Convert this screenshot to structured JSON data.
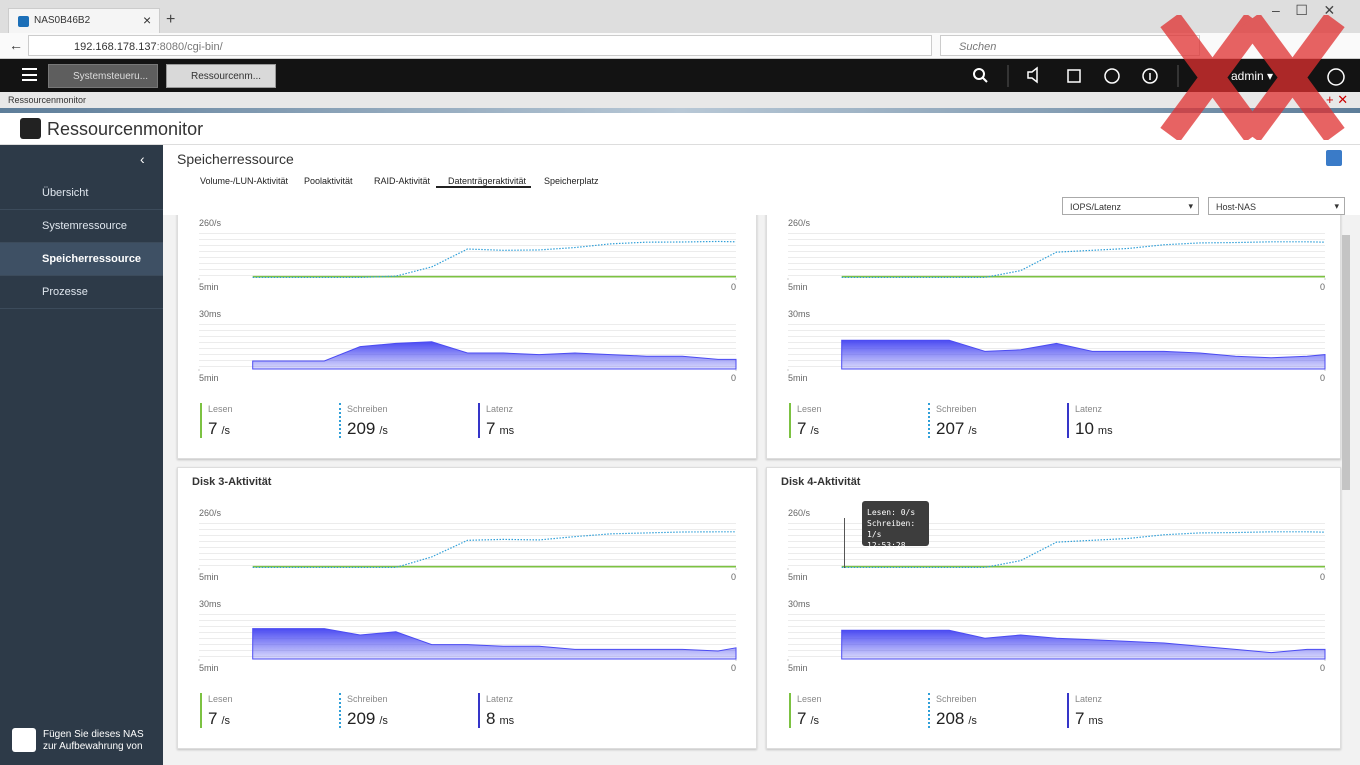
{
  "browser": {
    "tab_title": "NAS0B46B2",
    "url_host": "192.168.178.137",
    "url_rest": ":8080/cgi-bin/",
    "search_placeholder": "Suchen"
  },
  "topbar": {
    "tabs": [
      "Systemsteueru...",
      "Ressourcenm..."
    ],
    "user": "admin"
  },
  "window_title": "Ressourcenmonitor",
  "app": {
    "title": "Ressourcenmonitor",
    "sidebar": [
      "Übersicht",
      "Systemressource",
      "Speicherressource",
      "Prozesse"
    ],
    "footer": "Fügen Sie dieses NAS zur Aufbewahrung von"
  },
  "section": {
    "title": "Speicherressource",
    "tabs": [
      "Volume-/LUN-Aktivität",
      "Poolaktivität",
      "RAID-Aktivität",
      "Datenträgeraktivität",
      "Speicherplatz"
    ],
    "dropdowns": [
      "IOPS/Latenz",
      "Host-NAS"
    ]
  },
  "panels": [
    {
      "iops": {
        "type": "line",
        "xlim": [
          300,
          0
        ],
        "xticks": [
          {
            "value": 300,
            "label": "5min"
          },
          0
        ],
        "ylim": [
          0,
          260
        ],
        "yticks": [
          {
            "value": 260,
            "label": "260/s"
          }
        ],
        "x": [
          270,
          250,
          230,
          210,
          190,
          170,
          150,
          130,
          110,
          90,
          70,
          50,
          30,
          10,
          0
        ],
        "series": [
          {
            "color": "#7cc242",
            "values": [
              7,
              7,
              7,
              7,
              7,
              7,
              7,
              7,
              7,
              7,
              7,
              7,
              7,
              7,
              7
            ]
          },
          {
            "color": "#2f9fd8",
            "dashed": true,
            "values": [
              3,
              3,
              3,
              3,
              10,
              60,
              157,
              150,
              152,
              165,
              185,
              194,
              195,
              198,
              196
            ]
          }
        ]
      },
      "latency": {
        "type": "area",
        "xlim": [
          300,
          0
        ],
        "xticks": [
          {
            "value": 300,
            "label": "5min"
          },
          0
        ],
        "ylim": [
          0,
          30
        ],
        "yticks": [
          {
            "value": 30,
            "label": "30ms"
          }
        ],
        "x": [
          270,
          250,
          230,
          210,
          190,
          170,
          150,
          130,
          110,
          90,
          70,
          50,
          30,
          10,
          0
        ],
        "color": "#4b4bf2",
        "values": [
          5,
          5,
          5,
          14,
          16,
          17,
          10,
          10,
          9,
          10,
          9,
          8,
          8,
          6,
          6
        ]
      },
      "stats": [
        {
          "label": "Lesen",
          "value": 7,
          "unit": "/s",
          "color": "#7cc242"
        },
        {
          "label": "Schreiben",
          "value": 209,
          "unit": "/s",
          "color": "#2f9fd8"
        },
        {
          "label": "Latenz",
          "value": 7,
          "unit": "ms",
          "color": "#3535c8"
        }
      ]
    },
    {
      "iops": {
        "type": "line",
        "xlim": [
          300,
          0
        ],
        "xticks": [
          {
            "value": 300,
            "label": "5min"
          },
          0
        ],
        "ylim": [
          0,
          260
        ],
        "yticks": [
          {
            "value": 260,
            "label": "260/s"
          }
        ],
        "x": [
          270,
          250,
          230,
          210,
          190,
          170,
          150,
          130,
          110,
          90,
          70,
          50,
          30,
          10,
          0
        ],
        "series": [
          {
            "color": "#7cc242",
            "values": [
              7,
              7,
              7,
              7,
              7,
              7,
              7,
              7,
              7,
              7,
              7,
              7,
              7,
              7,
              7
            ]
          },
          {
            "color": "#2f9fd8",
            "dashed": true,
            "values": [
              3,
              3,
              3,
              3,
              3,
              40,
              140,
              150,
              160,
              180,
              190,
              192,
              196,
              196,
              194
            ]
          }
        ]
      },
      "latency": {
        "type": "area",
        "xlim": [
          300,
          0
        ],
        "xticks": [
          {
            "value": 300,
            "label": "5min"
          },
          0
        ],
        "ylim": [
          0,
          30
        ],
        "yticks": [
          {
            "value": 30,
            "label": "30ms"
          }
        ],
        "x": [
          270,
          250,
          230,
          210,
          190,
          170,
          150,
          130,
          110,
          90,
          70,
          50,
          30,
          10,
          0
        ],
        "color": "#4b4bf2",
        "values": [
          18,
          18,
          18,
          18,
          11,
          12,
          16,
          11,
          11,
          11,
          10,
          8,
          7,
          8,
          9
        ]
      },
      "stats": [
        {
          "label": "Lesen",
          "value": 7,
          "unit": "/s",
          "color": "#7cc242"
        },
        {
          "label": "Schreiben",
          "value": 207,
          "unit": "/s",
          "color": "#2f9fd8"
        },
        {
          "label": "Latenz",
          "value": 10,
          "unit": "ms",
          "color": "#3535c8"
        }
      ]
    },
    {
      "title": "Disk 3-Aktivität",
      "iops": {
        "type": "line",
        "xlim": [
          300,
          0
        ],
        "xticks": [
          {
            "value": 300,
            "label": "5min"
          },
          0
        ],
        "ylim": [
          0,
          260
        ],
        "yticks": [
          {
            "value": 260,
            "label": "260/s"
          }
        ],
        "x": [
          270,
          250,
          230,
          210,
          190,
          170,
          150,
          130,
          110,
          90,
          70,
          50,
          30,
          10,
          0
        ],
        "series": [
          {
            "color": "#7cc242",
            "values": [
              7,
              7,
              7,
              7,
              7,
              7,
              7,
              7,
              7,
              7,
              7,
              7,
              7,
              7,
              7
            ]
          },
          {
            "color": "#2f9fd8",
            "dashed": true,
            "values": [
              3,
              3,
              3,
              3,
              3,
              60,
              150,
              155,
              152,
              170,
              185,
              190,
              195,
              196,
              196
            ]
          }
        ]
      },
      "latency": {
        "type": "area",
        "xlim": [
          300,
          0
        ],
        "xticks": [
          {
            "value": 300,
            "label": "5min"
          },
          0
        ],
        "ylim": [
          0,
          30
        ],
        "yticks": [
          {
            "value": 30,
            "label": "30ms"
          }
        ],
        "x": [
          270,
          250,
          230,
          210,
          190,
          170,
          150,
          130,
          110,
          90,
          70,
          50,
          30,
          10,
          0
        ],
        "color": "#4b4bf2",
        "values": [
          19,
          19,
          19,
          15,
          17,
          9,
          9,
          8,
          8,
          6,
          6,
          6,
          6,
          5,
          7
        ]
      },
      "stats": [
        {
          "label": "Lesen",
          "value": 7,
          "unit": "/s",
          "color": "#7cc242"
        },
        {
          "label": "Schreiben",
          "value": 209,
          "unit": "/s",
          "color": "#2f9fd8"
        },
        {
          "label": "Latenz",
          "value": 8,
          "unit": "ms",
          "color": "#3535c8"
        }
      ]
    },
    {
      "title": "Disk 4-Aktivität",
      "iops": {
        "type": "line",
        "xlim": [
          300,
          0
        ],
        "xticks": [
          {
            "value": 300,
            "label": "5min"
          },
          0
        ],
        "ylim": [
          0,
          260
        ],
        "yticks": [
          {
            "value": 260,
            "label": "260/s"
          }
        ],
        "x": [
          270,
          250,
          230,
          210,
          190,
          170,
          150,
          130,
          110,
          90,
          70,
          50,
          30,
          10,
          0
        ],
        "series": [
          {
            "color": "#7cc242",
            "values": [
              7,
              7,
              7,
              7,
              7,
              7,
              7,
              7,
              7,
              7,
              7,
              7,
              7,
              7,
              7
            ]
          },
          {
            "color": "#2f9fd8",
            "dashed": true,
            "values": [
              3,
              3,
              3,
              3,
              3,
              40,
              140,
              150,
              160,
              180,
              190,
              192,
              196,
              196,
              194
            ]
          }
        ]
      },
      "latency": {
        "type": "area",
        "xlim": [
          300,
          0
        ],
        "xticks": [
          {
            "value": 300,
            "label": "5min"
          },
          0
        ],
        "ylim": [
          0,
          30
        ],
        "yticks": [
          {
            "value": 30,
            "label": "30ms"
          }
        ],
        "x": [
          270,
          250,
          230,
          210,
          190,
          170,
          150,
          130,
          110,
          90,
          70,
          50,
          30,
          10,
          0
        ],
        "color": "#4b4bf2",
        "values": [
          18,
          18,
          18,
          18,
          13,
          15,
          13,
          12,
          11,
          10,
          8,
          6,
          4,
          6,
          6
        ]
      },
      "stats": [
        {
          "label": "Lesen",
          "value": 7,
          "unit": "/s",
          "color": "#7cc242"
        },
        {
          "label": "Schreiben",
          "value": 208,
          "unit": "/s",
          "color": "#2f9fd8"
        },
        {
          "label": "Latenz",
          "value": 7,
          "unit": "ms",
          "color": "#3535c8"
        }
      ]
    }
  ],
  "tooltip": {
    "lines": [
      "Lesen: 0/s",
      "Schreiben: 1/s",
      "12:53:28"
    ]
  }
}
